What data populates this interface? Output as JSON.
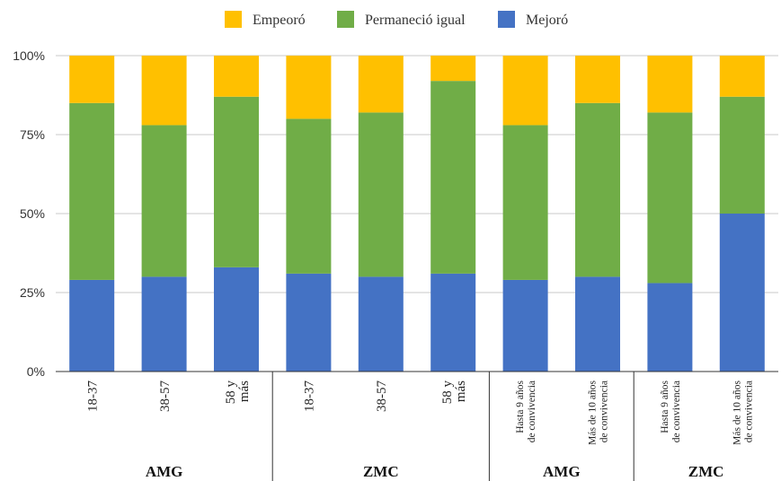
{
  "chart_data": {
    "type": "bar",
    "stacked": true,
    "percent": true,
    "categories": [
      "18-37",
      "38-57",
      "58 y más",
      "18-37",
      "38-57",
      "58 y más",
      "Hasta 9 años de convivencia",
      "Más de 10 años de convivencia",
      "Hasta 9 años de convivencia",
      "Más de 10 años de convivencia"
    ],
    "category_lines": [
      [
        "18-37"
      ],
      [
        "38-57"
      ],
      [
        "58 y",
        "más"
      ],
      [
        "18-37"
      ],
      [
        "38-57"
      ],
      [
        "58 y",
        "más"
      ],
      [
        "Hasta 9 años",
        "de convivencia"
      ],
      [
        "Más de 10 años",
        "de convivencia"
      ],
      [
        "Hasta 9 años",
        "de convivencia"
      ],
      [
        "Más de 10 años",
        "de convivencia"
      ]
    ],
    "groups": [
      {
        "label": "AMG",
        "count": 3
      },
      {
        "label": "ZMC",
        "count": 3
      },
      {
        "label": "AMG",
        "count": 2
      },
      {
        "label": "ZMC",
        "count": 2
      }
    ],
    "series": [
      {
        "name": "Mejoró",
        "color": "#4472C4",
        "values": [
          29,
          30,
          33,
          31,
          30,
          31,
          29,
          30,
          28,
          50
        ]
      },
      {
        "name": "Permaneció igual",
        "color": "#70AD47",
        "values": [
          56,
          48,
          54,
          49,
          52,
          61,
          49,
          55,
          54,
          37
        ]
      },
      {
        "name": "Empeoró",
        "color": "#FFC000",
        "values": [
          15,
          22,
          13,
          20,
          18,
          8,
          22,
          15,
          18,
          13
        ]
      }
    ],
    "legend_order": [
      "Empeoró",
      "Permaneció igual",
      "Mejoró"
    ],
    "legend_position": "top",
    "ylim": [
      0,
      100
    ],
    "yticks": [
      "0%",
      "25%",
      "50%",
      "75%",
      "100%"
    ],
    "grid": true
  }
}
